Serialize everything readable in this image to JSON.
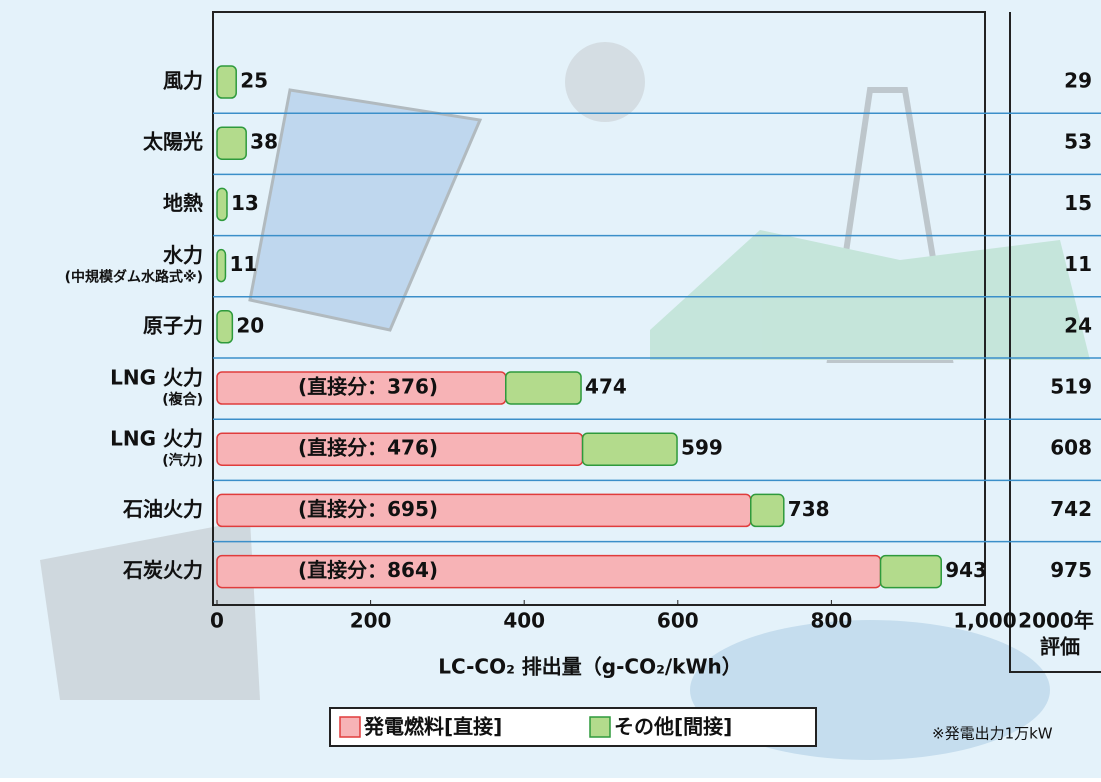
{
  "chart_data": {
    "type": "stacked-barh",
    "categories": [
      "風力",
      "太陽光",
      "地熱",
      "水力",
      "原子力",
      "LNG 火力",
      "LNG 火力",
      "石油火力",
      "石炭火力"
    ],
    "category_sublabels": [
      null,
      null,
      null,
      "(中規模ダム水路式※)",
      null,
      "(複合)",
      "(汽力)",
      null,
      null
    ],
    "series": [
      {
        "name": "発電燃料[直接]",
        "color": "#f7b3b6",
        "stroke": "#e03c3c",
        "values": [
          null,
          null,
          null,
          null,
          null,
          376,
          476,
          695,
          864
        ],
        "value_labels": [
          null,
          null,
          null,
          null,
          null,
          "(直接分：376)",
          "(直接分：476)",
          "(直接分：695)",
          "(直接分：864)"
        ]
      },
      {
        "name": "その他[間接]",
        "color": "#b3db8c",
        "stroke": "#2e9a3c",
        "values": [
          25,
          38,
          13,
          11,
          20,
          98,
          123,
          43,
          79
        ]
      }
    ],
    "totals": [
      25,
      38,
      13,
      11,
      20,
      474,
      599,
      738,
      943
    ],
    "xlim": [
      0,
      1000
    ],
    "xticks": [
      0,
      200,
      400,
      600,
      800,
      {
        "value": 1000,
        "label": "1,000"
      }
    ],
    "xlabel": "LC-CO₂ 排出量（g-CO₂/kWh）",
    "assessment_title": [
      "2000年",
      "評価"
    ],
    "assessment_values": [
      29,
      53,
      15,
      11,
      24,
      519,
      608,
      742,
      975
    ],
    "note": "※発電出力1万kW",
    "grid": true
  }
}
